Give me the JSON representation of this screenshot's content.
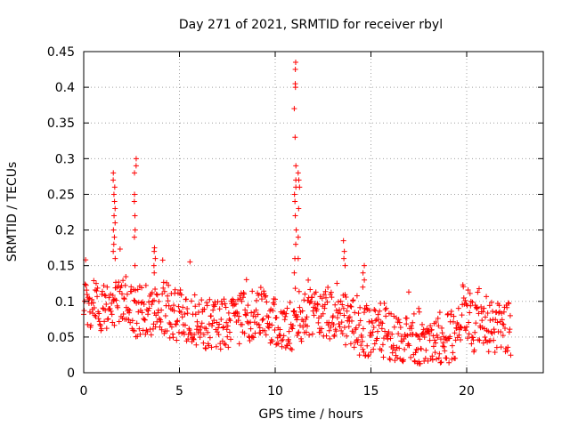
{
  "chart_data": {
    "type": "scatter",
    "title": "Day 271 of 2021, SRMTID for receiver rbyl",
    "xlabel": "GPS time / hours",
    "ylabel": "SRMTID / TECUs",
    "xlim": [
      0,
      24
    ],
    "ylim": [
      0,
      0.45
    ],
    "xticks": [
      0,
      5,
      10,
      15,
      20
    ],
    "xtick_labels": [
      "0",
      "5",
      "10",
      "15",
      "20"
    ],
    "yticks": [
      0,
      0.05,
      0.1,
      0.15,
      0.2,
      0.25,
      0.3,
      0.35,
      0.4,
      0.45
    ],
    "ytick_labels": [
      "0",
      "0.05",
      "0.1",
      "0.15",
      "0.2",
      "0.25",
      "0.3",
      "0.35",
      "0.4",
      "0.45"
    ],
    "grid": true,
    "marker": "+",
    "color": "#ff0000",
    "baseline": [
      [
        0.0,
        0.1
      ],
      [
        0.5,
        0.095
      ],
      [
        1.0,
        0.09
      ],
      [
        1.5,
        0.1
      ],
      [
        2.0,
        0.105
      ],
      [
        2.5,
        0.09
      ],
      [
        3.0,
        0.085
      ],
      [
        3.5,
        0.09
      ],
      [
        4.0,
        0.095
      ],
      [
        4.5,
        0.085
      ],
      [
        5.0,
        0.08
      ],
      [
        5.5,
        0.08
      ],
      [
        6.0,
        0.075
      ],
      [
        6.5,
        0.07
      ],
      [
        7.0,
        0.07
      ],
      [
        7.5,
        0.07
      ],
      [
        8.0,
        0.075
      ],
      [
        8.5,
        0.08
      ],
      [
        9.0,
        0.085
      ],
      [
        9.5,
        0.08
      ],
      [
        10.0,
        0.07
      ],
      [
        10.5,
        0.06
      ],
      [
        11.0,
        0.07
      ],
      [
        11.5,
        0.085
      ],
      [
        12.0,
        0.09
      ],
      [
        12.5,
        0.085
      ],
      [
        13.0,
        0.08
      ],
      [
        13.5,
        0.075
      ],
      [
        14.0,
        0.07
      ],
      [
        14.5,
        0.06
      ],
      [
        15.0,
        0.06
      ],
      [
        15.5,
        0.06
      ],
      [
        16.0,
        0.055
      ],
      [
        16.5,
        0.045
      ],
      [
        17.0,
        0.04
      ],
      [
        17.5,
        0.035
      ],
      [
        18.0,
        0.03
      ],
      [
        18.5,
        0.035
      ],
      [
        19.0,
        0.045
      ],
      [
        19.5,
        0.06
      ],
      [
        19.9,
        0.1
      ],
      [
        20.2,
        0.065
      ],
      [
        20.5,
        0.06
      ],
      [
        21.0,
        0.065
      ],
      [
        21.5,
        0.06
      ],
      [
        22.0,
        0.065
      ],
      [
        22.3,
        0.06
      ]
    ],
    "spikes": [
      {
        "x": 1.6,
        "values": [
          0.28,
          0.27,
          0.26,
          0.25,
          0.24,
          0.23,
          0.22,
          0.21,
          0.2,
          0.19,
          0.18,
          0.17,
          0.16
        ]
      },
      {
        "x": 2.7,
        "values": [
          0.3,
          0.29,
          0.28,
          0.25,
          0.24,
          0.22,
          0.2,
          0.19,
          0.15
        ]
      },
      {
        "x": 3.7,
        "values": [
          0.175,
          0.17,
          0.16,
          0.15,
          0.14
        ]
      },
      {
        "x": 11.05,
        "values": [
          0.435,
          0.425,
          0.405,
          0.4,
          0.37,
          0.33,
          0.29,
          0.27,
          0.26,
          0.25,
          0.24,
          0.22,
          0.2,
          0.18,
          0.16,
          0.14
        ]
      },
      {
        "x": 11.25,
        "values": [
          0.28,
          0.27,
          0.26,
          0.23,
          0.19,
          0.16
        ]
      },
      {
        "x": 13.6,
        "values": [
          0.185,
          0.17,
          0.16,
          0.15
        ]
      },
      {
        "x": 14.6,
        "values": [
          0.15,
          0.14,
          0.13,
          0.12
        ]
      },
      {
        "x": 17.5,
        "values": [
          0.09,
          0.085
        ]
      }
    ],
    "range_end_x": 22.3,
    "step_hours": 0.025
  }
}
